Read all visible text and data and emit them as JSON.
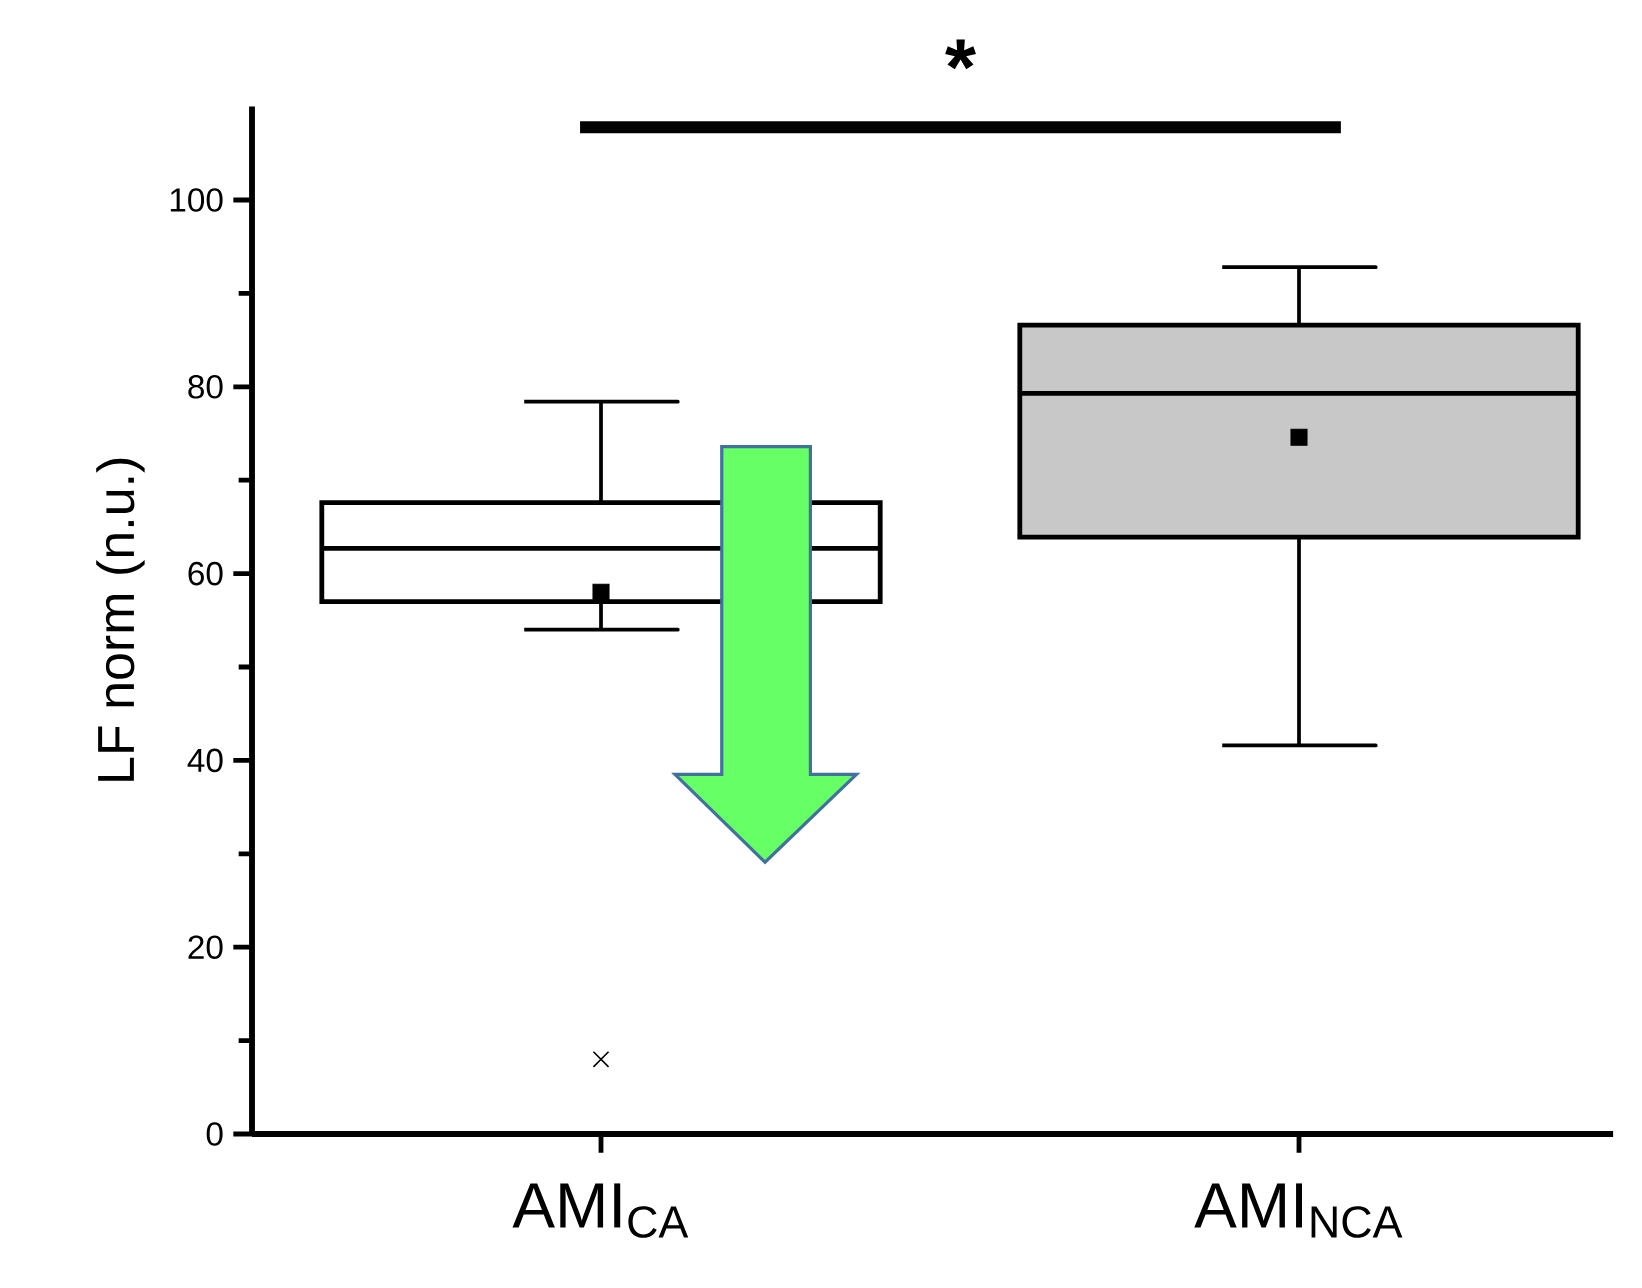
{
  "chart_data": {
    "type": "box",
    "ylabel": "LF norm (n.u.)",
    "categories": [
      "AMI$_{CA}$",
      "AMI$_{NCA}$"
    ],
    "boxes": [
      {
        "low": 54,
        "q1": 57,
        "median": 62.7,
        "q3": 67.6,
        "high": 78.4,
        "mean": 58,
        "outliers": [
          8
        ]
      },
      {
        "low": 41.6,
        "q1": 63.9,
        "median": 79.3,
        "q3": 86.6,
        "high": 92.8,
        "mean": 74.6
      }
    ],
    "colors": [
      "#ffffff",
      "#c8c8c8"
    ],
    "ylim": [
      0,
      110
    ],
    "yticks": [
      0,
      20,
      40,
      60,
      80,
      100
    ],
    "annotations": [
      "*"
    ]
  }
}
